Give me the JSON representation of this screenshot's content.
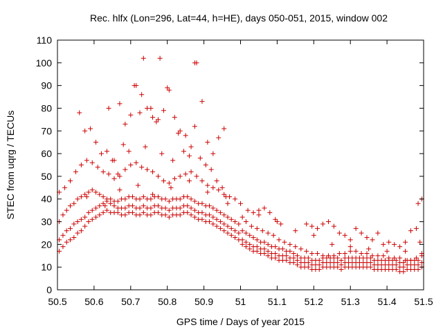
{
  "chart_data": {
    "type": "scatter",
    "title": "Rec. hlfx (Lon=296, Lat=44, h=HE), days 050-051, 2015, window 002",
    "xlabel": "GPS time / Days of year 2015",
    "ylabel": "STEC from uqrg / TECUs",
    "xlim": [
      50.5,
      51.5
    ],
    "ylim": [
      0,
      110
    ],
    "xticks": [
      "50.5",
      "50.6",
      "50.7",
      "50.8",
      "50.9",
      "51",
      "51.1",
      "51.2",
      "51.3",
      "51.4",
      "51.5"
    ],
    "yticks": [
      "0",
      "10",
      "20",
      "30",
      "40",
      "50",
      "60",
      "70",
      "80",
      "90",
      "100",
      "110"
    ],
    "grid": false,
    "marker": "plus",
    "color": "#cc0000",
    "series": [
      {
        "x": [
          50.505,
          50.515,
          50.525,
          50.535,
          50.545,
          50.555,
          50.565,
          50.575,
          50.585,
          50.595,
          50.605,
          50.615,
          50.625,
          50.635,
          50.645,
          50.655,
          50.665,
          50.675,
          50.685,
          50.695,
          50.705,
          50.715,
          50.725,
          50.735,
          50.745,
          50.755,
          50.765,
          50.775,
          50.785,
          50.795,
          50.805,
          50.815,
          50.825,
          50.835,
          50.845,
          50.855,
          50.865,
          50.875,
          50.885,
          50.895,
          50.905,
          50.915,
          50.925,
          50.935,
          50.945,
          50.955,
          50.965,
          50.975,
          50.985,
          50.995,
          51.005,
          51.015,
          51.025,
          51.035,
          51.045,
          51.055,
          51.065,
          51.075,
          51.085,
          51.095,
          51.105,
          51.115,
          51.125,
          51.135,
          51.145,
          51.155,
          51.165,
          51.175,
          51.185,
          51.195,
          51.205,
          51.215,
          51.225,
          51.235,
          51.245,
          51.255,
          51.265,
          51.275,
          51.285,
          51.295,
          51.305,
          51.315,
          51.325,
          51.335,
          51.345,
          51.355,
          51.365,
          51.375,
          51.385,
          51.395,
          51.405,
          51.415,
          51.425,
          51.435,
          51.445,
          51.455,
          51.465,
          51.475,
          51.485,
          51.495
        ],
        "y": [
          17,
          19,
          21,
          22,
          23,
          25,
          26,
          28,
          30,
          31,
          32,
          33,
          34,
          35,
          34,
          34,
          34,
          33,
          33,
          34,
          34,
          33,
          33,
          34,
          33,
          33,
          34,
          34,
          33,
          33,
          32,
          33,
          33,
          33,
          34,
          34,
          33,
          32,
          31,
          31,
          30,
          30,
          29,
          28,
          27,
          26,
          25,
          24,
          23,
          22,
          20,
          19,
          18,
          17,
          17,
          16,
          16,
          15,
          14,
          14,
          13,
          13,
          13,
          12,
          12,
          11,
          10,
          10,
          10,
          9,
          9,
          9,
          10,
          10,
          10,
          10,
          10,
          9,
          10,
          10,
          10,
          10,
          10,
          10,
          10,
          10,
          9,
          9,
          9,
          9,
          9,
          9,
          9,
          8,
          8,
          9,
          9,
          9,
          9,
          10
        ]
      },
      {
        "x": [
          50.505,
          50.515,
          50.525,
          50.535,
          50.545,
          50.555,
          50.565,
          50.575,
          50.585,
          50.595,
          50.605,
          50.615,
          50.625,
          50.635,
          50.645,
          50.655,
          50.665,
          50.675,
          50.685,
          50.695,
          50.705,
          50.715,
          50.725,
          50.735,
          50.745,
          50.755,
          50.765,
          50.775,
          50.785,
          50.795,
          50.805,
          50.815,
          50.825,
          50.835,
          50.845,
          50.855,
          50.865,
          50.875,
          50.885,
          50.895,
          50.905,
          50.915,
          50.925,
          50.935,
          50.945,
          50.955,
          50.965,
          50.975,
          50.985,
          50.995,
          51.005,
          51.015,
          51.025,
          51.035,
          51.045,
          51.055,
          51.065,
          51.075,
          51.085,
          51.095,
          51.105,
          51.115,
          51.125,
          51.135,
          51.145,
          51.155,
          51.165,
          51.175,
          51.185,
          51.195,
          51.205,
          51.215,
          51.225,
          51.235,
          51.245,
          51.255,
          51.265,
          51.275,
          51.285,
          51.295,
          51.305,
          51.315,
          51.325,
          51.335,
          51.345,
          51.355,
          51.365,
          51.375,
          51.385,
          51.395,
          51.405,
          51.415,
          51.425,
          51.435,
          51.445,
          51.455,
          51.465,
          51.475,
          51.485,
          51.495
        ],
        "y": [
          22,
          24,
          26,
          27,
          29,
          30,
          31,
          32,
          34,
          35,
          36,
          37,
          38,
          39,
          38,
          37,
          36,
          36,
          36,
          37,
          37,
          36,
          36,
          37,
          36,
          36,
          37,
          37,
          36,
          36,
          35,
          36,
          36,
          36,
          37,
          37,
          36,
          35,
          34,
          34,
          33,
          33,
          32,
          31,
          30,
          29,
          28,
          27,
          26,
          25,
          22,
          21,
          20,
          19,
          19,
          18,
          18,
          17,
          16,
          16,
          15,
          15,
          15,
          14,
          14,
          13,
          12,
          12,
          12,
          11,
          11,
          11,
          12,
          12,
          12,
          12,
          12,
          11,
          12,
          12,
          12,
          12,
          12,
          12,
          12,
          12,
          11,
          11,
          11,
          11,
          11,
          11,
          11,
          10,
          10,
          11,
          11,
          11,
          11,
          12
        ]
      },
      {
        "x": [
          50.505,
          50.515,
          50.525,
          50.535,
          50.545,
          50.555,
          50.565,
          50.575,
          50.585,
          50.595,
          50.605,
          50.615,
          50.625,
          50.635,
          50.645,
          50.655,
          50.665,
          50.675,
          50.685,
          50.695,
          50.705,
          50.715,
          50.725,
          50.735,
          50.745,
          50.755,
          50.765,
          50.775,
          50.785,
          50.795,
          50.805,
          50.815,
          50.825,
          50.835,
          50.845,
          50.855,
          50.865,
          50.875,
          50.885,
          50.895,
          50.905,
          50.915,
          50.925,
          50.935,
          50.945,
          50.955,
          50.965,
          50.975,
          50.985,
          50.995,
          51.005,
          51.015,
          51.025,
          51.035,
          51.045,
          51.055,
          51.065,
          51.075,
          51.085,
          51.095,
          51.105,
          51.115,
          51.125,
          51.135,
          51.145,
          51.155,
          51.165,
          51.175,
          51.185,
          51.195,
          51.205,
          51.215,
          51.225,
          51.235,
          51.245,
          51.255,
          51.265,
          51.275,
          51.285,
          51.295,
          51.305,
          51.315,
          51.325,
          51.335,
          51.345,
          51.355,
          51.365,
          51.375,
          51.385,
          51.395,
          51.405,
          51.415,
          51.425,
          51.435,
          51.445,
          51.455,
          51.465,
          51.475,
          51.485,
          51.495
        ],
        "y": [
          30,
          33,
          35,
          37,
          38,
          40,
          41,
          42,
          43,
          44,
          43,
          42,
          41,
          40,
          40,
          39,
          39,
          40,
          40,
          41,
          41,
          40,
          40,
          41,
          40,
          40,
          41,
          41,
          40,
          40,
          39,
          40,
          40,
          40,
          41,
          41,
          40,
          39,
          38,
          38,
          37,
          37,
          36,
          35,
          34,
          33,
          32,
          31,
          30,
          29,
          26,
          25,
          24,
          23,
          22,
          21,
          21,
          20,
          19,
          19,
          18,
          18,
          17,
          17,
          16,
          15,
          14,
          14,
          14,
          13,
          13,
          13,
          14,
          14,
          14,
          14,
          14,
          13,
          14,
          14,
          14,
          14,
          14,
          14,
          14,
          14,
          13,
          13,
          13,
          13,
          13,
          13,
          13,
          12,
          12,
          13,
          13,
          13,
          13,
          15
        ]
      },
      {
        "x": [
          50.505,
          50.52,
          50.535,
          50.55,
          50.565,
          50.58,
          50.595,
          50.61,
          50.625,
          50.64,
          50.655,
          50.67,
          50.685,
          50.7,
          50.715,
          50.73,
          50.745,
          50.76,
          50.775,
          50.79,
          50.805,
          50.82,
          50.835,
          50.85,
          50.865,
          50.88,
          50.895,
          50.91,
          50.925,
          50.94,
          50.955,
          50.97,
          50.985,
          51.0,
          51.015,
          51.03,
          51.045,
          51.06,
          51.075,
          51.09,
          51.105,
          51.12,
          51.135,
          51.15,
          51.165,
          51.18,
          51.195,
          51.21,
          51.225,
          51.24,
          51.255,
          51.27,
          51.285,
          51.3,
          51.315,
          51.33,
          51.345,
          51.36,
          51.375,
          51.39,
          51.405,
          51.42,
          51.435,
          51.45,
          51.465,
          51.48,
          51.495
        ],
        "y": [
          43,
          45,
          48,
          52,
          55,
          57,
          56,
          54,
          52,
          51,
          49,
          50,
          53,
          55,
          56,
          54,
          53,
          52,
          50,
          48,
          47,
          49,
          50,
          51,
          52,
          50,
          48,
          46,
          45,
          44,
          42,
          41,
          40,
          38,
          30,
          28,
          27,
          26,
          25,
          24,
          22,
          21,
          20,
          19,
          18,
          17,
          16,
          16,
          15,
          15,
          15,
          16,
          16,
          17,
          17,
          16,
          16,
          15,
          15,
          15,
          14,
          14,
          14,
          13,
          13,
          14,
          16
        ]
      },
      {
        "x": [
          50.56,
          50.575,
          50.59,
          50.605,
          50.62,
          50.635,
          50.65,
          50.665,
          50.68,
          50.695,
          50.71,
          50.725,
          50.74,
          50.755,
          50.77,
          50.785,
          50.8,
          50.815,
          50.83,
          50.845,
          50.86,
          50.875,
          50.89,
          50.905,
          50.92,
          50.935,
          50.95,
          50.965,
          51.02,
          51.035,
          51.05,
          51.065,
          51.08,
          51.095,
          51.11,
          51.18,
          51.195,
          51.21,
          51.225,
          51.24,
          51.255,
          51.27,
          51.285,
          51.3,
          51.315,
          51.33,
          51.345,
          51.36,
          51.375,
          51.39,
          51.405,
          51.42,
          51.435,
          51.45,
          51.465,
          51.48
        ],
        "y": [
          78,
          70,
          71,
          65,
          60,
          61,
          57,
          51,
          64,
          61,
          90,
          78,
          63,
          80,
          74,
          60,
          89,
          57,
          69,
          61,
          59,
          72,
          58,
          55,
          53,
          48,
          45,
          38,
          35,
          34,
          33,
          36,
          34,
          31,
          29,
          29,
          28,
          27,
          29,
          30,
          28,
          25,
          24,
          22,
          27,
          25,
          23,
          22,
          25,
          20,
          21,
          20,
          19,
          21,
          26,
          27
        ]
      },
      {
        "x": [
          50.64,
          50.655,
          50.67,
          50.685,
          50.7,
          50.715,
          50.73,
          50.745,
          50.76,
          50.775,
          50.79,
          50.805,
          50.82,
          50.835,
          50.85,
          50.865,
          50.88,
          50.895,
          50.91,
          50.925,
          50.94,
          50.955
        ],
        "y": [
          80,
          57,
          82,
          73,
          77,
          90,
          86,
          80,
          76,
          75,
          79,
          88,
          76,
          70,
          68,
          63,
          100,
          83,
          65,
          60,
          67,
          71
        ]
      },
      {
        "x": [
          50.735,
          50.78,
          50.875,
          50.58,
          50.63,
          50.67,
          50.72,
          50.76,
          50.81,
          50.86,
          50.91,
          50.96,
          51.005,
          51.05,
          51.1,
          51.15,
          51.2,
          51.25,
          51.3,
          51.35,
          51.4,
          51.45,
          51.49,
          51.485,
          51.495
        ],
        "y": [
          102,
          102,
          100,
          41,
          37,
          44,
          46,
          42,
          45,
          48,
          43,
          41,
          32,
          35,
          30,
          26,
          24,
          20,
          19,
          18,
          17,
          17,
          21,
          38,
          40
        ]
      }
    ]
  }
}
